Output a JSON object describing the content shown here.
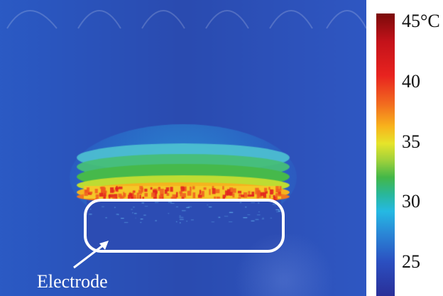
{
  "colorbar": {
    "ticks": [
      "45°C",
      "40",
      "35",
      "30",
      "25"
    ],
    "scale": {
      "min": 22,
      "max": 45,
      "unit": "°C"
    },
    "colormap": [
      "#2a2f98",
      "#2b4fc0",
      "#2a86d6",
      "#25b9e3",
      "#29b79a",
      "#43b748",
      "#9fd13b",
      "#e6e42a",
      "#f8b31c",
      "#f26b1f",
      "#e8231f",
      "#c4121a",
      "#7a0a0a"
    ]
  },
  "annotation": {
    "label": "Electrode",
    "outline_color": "#ffffff"
  },
  "colors": {
    "background_field": "#2a4bb0",
    "hot_band": "#f2a61f"
  }
}
